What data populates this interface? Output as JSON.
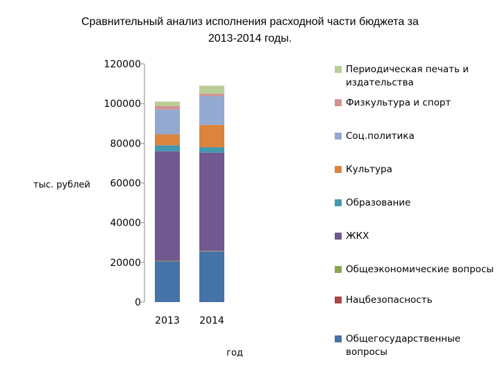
{
  "chart_data": {
    "type": "bar",
    "stacked": true,
    "title": "Сравнительный анализ исполнения расходной части бюджета за\n2013-2014 годы.",
    "xlabel": "год",
    "ylabel": "тыс. рублей",
    "categories": [
      "2013",
      "2014"
    ],
    "ylim": [
      0,
      120000
    ],
    "yticks": [
      "0",
      "20000",
      "40000",
      "60000",
      "80000",
      "100000",
      "120000"
    ],
    "grid": false,
    "legend_position": "right",
    "series": [
      {
        "name": "Общегосударственные вопросы",
        "color": "#4572A7",
        "values": [
          20500,
          25500
        ]
      },
      {
        "name": "Нацбезопасность",
        "color": "#AA4643",
        "values": [
          100,
          100
        ]
      },
      {
        "name": "Общеэкономические вопросы",
        "color": "#89A54E",
        "values": [
          200,
          200
        ]
      },
      {
        "name": "ЖКХ",
        "color": "#71588F",
        "values": [
          55200,
          49500
        ]
      },
      {
        "name": "Образование",
        "color": "#4198AF",
        "values": [
          3000,
          2700
        ]
      },
      {
        "name": "Культура",
        "color": "#DB843D",
        "values": [
          5500,
          11300
        ]
      },
      {
        "name": "Соц.политика",
        "color": "#93A9CF",
        "values": [
          12500,
          14500
        ]
      },
      {
        "name": "Физкультура и спорт",
        "color": "#D19392",
        "values": [
          1800,
          1200
        ]
      },
      {
        "name": "Периодическая печать и издательства",
        "color": "#B9CD96",
        "values": [
          2200,
          4000
        ]
      }
    ]
  }
}
